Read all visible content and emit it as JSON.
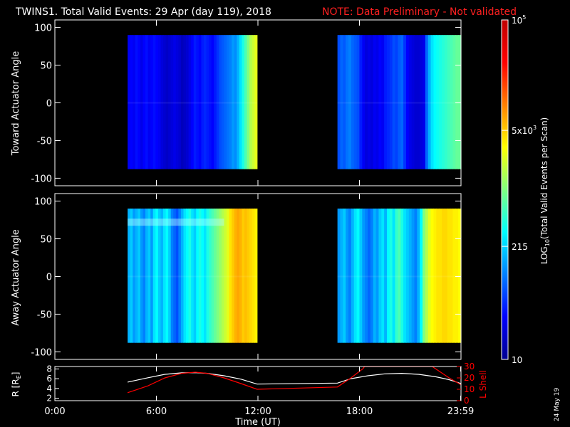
{
  "header": {
    "title": "TWINS1. Total Valid Events: 29 Apr (day 119), 2018",
    "note": "NOTE: Data Preliminary - Not validated"
  },
  "footer_date": "24 May 19",
  "colors": {
    "background": "#000000",
    "axes": "#ffffff",
    "note": "#ff2020",
    "lshell": "#ff0000",
    "r_line": "#ffffff"
  },
  "chart_data": [
    {
      "type": "heatmap",
      "panel": "toward",
      "ylabel": "Toward Actuator Angle",
      "xlim": [
        0,
        24
      ],
      "ylim": [
        -110,
        110
      ],
      "yticks": [
        100,
        50,
        0,
        -50,
        -100
      ],
      "y_extent": [
        -88,
        90
      ],
      "data_blocks": [
        {
          "x_start": 4.3,
          "x_end": 11.95
        },
        {
          "x_start": 16.7,
          "x_end": 24.0
        }
      ],
      "column_levels_note": "log10 total valid events per scan, per time bin, left to right within each block",
      "block_levels": [
        [
          1.45,
          1.5,
          1.45,
          1.55,
          1.5,
          1.4,
          1.5,
          1.55,
          1.45,
          1.5,
          1.55,
          1.5,
          1.45,
          1.35,
          1.3,
          1.25,
          1.3,
          1.35,
          1.4,
          1.35,
          1.3,
          1.2,
          1.25,
          1.3,
          1.4,
          1.5,
          1.6,
          1.55,
          1.5,
          1.6,
          1.65,
          1.6,
          1.55,
          1.5,
          1.6,
          1.7,
          1.8,
          1.85,
          1.9,
          1.95,
          2.0,
          2.1,
          2.05,
          2.2,
          2.4,
          2.6,
          2.8,
          3.0,
          3.2,
          3.3,
          3.4
        ],
        [
          1.8,
          1.9,
          1.85,
          1.95,
          2.0,
          1.9,
          1.85,
          1.8,
          1.6,
          1.45,
          1.35,
          1.4,
          1.35,
          1.45,
          1.4,
          1.5,
          1.45,
          1.6,
          1.65,
          1.7,
          1.8,
          1.75,
          1.85,
          1.9,
          1.7,
          1.5,
          1.4,
          1.35,
          1.3,
          1.3,
          1.35,
          1.4,
          1.9,
          2.2,
          2.4,
          2.5,
          2.55,
          2.6,
          2.65,
          2.7,
          2.75,
          2.8,
          2.85,
          2.9,
          2.9
        ]
      ]
    },
    {
      "type": "heatmap",
      "panel": "away",
      "ylabel": "Away Actuator Angle",
      "xlim": [
        0,
        24
      ],
      "ylim": [
        -110,
        110
      ],
      "yticks": [
        100,
        50,
        0,
        -50,
        -100
      ],
      "y_extent": [
        -88,
        90
      ],
      "data_blocks": [
        {
          "x_start": 4.3,
          "x_end": 11.95
        },
        {
          "x_start": 16.7,
          "x_end": 24.0
        }
      ],
      "block_levels": [
        [
          2.2,
          2.3,
          2.1,
          2.2,
          2.3,
          2.1,
          2.0,
          2.2,
          2.3,
          2.1,
          2.4,
          2.5,
          2.3,
          2.2,
          2.4,
          2.5,
          2.3,
          2.0,
          1.9,
          1.8,
          2.0,
          2.2,
          2.4,
          2.5,
          2.6,
          2.4,
          2.3,
          2.5,
          2.6,
          2.5,
          2.4,
          2.6,
          2.7,
          2.8,
          2.9,
          3.0,
          3.1,
          3.2,
          3.3,
          3.4,
          3.6,
          3.7,
          3.8,
          3.85,
          3.8,
          3.7,
          3.75,
          3.7,
          3.65,
          3.6,
          3.55
        ],
        [
          2.1,
          2.2,
          2.3,
          2.1,
          2.0,
          2.2,
          2.4,
          2.5,
          2.3,
          2.1,
          2.0,
          1.9,
          2.0,
          2.2,
          2.1,
          2.3,
          2.4,
          2.2,
          2.5,
          2.6,
          2.4,
          2.7,
          2.8,
          2.6,
          2.4,
          2.3,
          2.2,
          2.1,
          2.0,
          2.2,
          2.5,
          3.0,
          3.2,
          3.4,
          3.5,
          3.55,
          3.6,
          3.6,
          3.65,
          3.65,
          3.6,
          3.6,
          3.55,
          3.55,
          3.5
        ]
      ],
      "band": {
        "y_center": 72,
        "boost": 0.5,
        "x_until": 10.0
      }
    },
    {
      "type": "line",
      "panel": "orbit",
      "xlabel": "Time (UT)",
      "ylabel_left": "R [R",
      "ylabel_left_sub": "E",
      "ylabel_left_end": "]",
      "ylabel_right": "L Shell",
      "xlim": [
        0,
        24
      ],
      "xticks": [
        {
          "value": 0,
          "label": "0:00"
        },
        {
          "value": 6,
          "label": "6:00"
        },
        {
          "value": 12,
          "label": "12:00"
        },
        {
          "value": 18,
          "label": "18:00"
        },
        {
          "value": 23.98,
          "label": "23:59"
        }
      ],
      "ylim_left": [
        1.5,
        8.5
      ],
      "yticks_left": [
        2,
        4,
        6,
        8
      ],
      "ylim_right": [
        0,
        30
      ],
      "yticks_right": [
        0,
        10,
        20,
        30
      ],
      "series": [
        {
          "name": "R",
          "axis": "left",
          "color": "#ffffff",
          "x": [
            4.3,
            5.5,
            6.5,
            7.5,
            8.3,
            9.0,
            10.0,
            11.0,
            11.95,
            16.7,
            17.5,
            18.5,
            19.5,
            20.5,
            21.5,
            22.5,
            23.3,
            24.0
          ],
          "y": [
            5.3,
            6.2,
            6.9,
            7.2,
            7.25,
            7.1,
            6.6,
            5.9,
            4.9,
            5.1,
            6.0,
            6.6,
            7.0,
            7.1,
            6.9,
            6.4,
            5.8,
            5.0
          ]
        },
        {
          "name": "L Shell",
          "axis": "right",
          "color": "#ff0000",
          "x": [
            4.3,
            5.5,
            6.5,
            7.5,
            8.3,
            9.0,
            10.0,
            11.0,
            11.95,
            16.7,
            17.5,
            18.2,
            18.3,
            22.3,
            22.4,
            23.3,
            24.0
          ],
          "y": [
            7,
            13,
            20,
            24,
            25,
            24,
            20,
            15,
            10,
            12,
            20,
            28,
            30,
            30,
            29,
            20,
            14
          ]
        }
      ]
    }
  ],
  "colorbar": {
    "label": "LOG",
    "label_sub": "10",
    "label_rest": "(Total Valid Events per Scan)",
    "range_log": [
      1,
      5
    ],
    "ticks": [
      {
        "log": 5,
        "label": "10",
        "sup": "5"
      },
      {
        "log": 3.699,
        "label": "5x10",
        "sup": "3"
      },
      {
        "log": 2.332,
        "label": "215",
        "sup": ""
      },
      {
        "log": 1,
        "label": "10",
        "sup": ""
      }
    ]
  }
}
